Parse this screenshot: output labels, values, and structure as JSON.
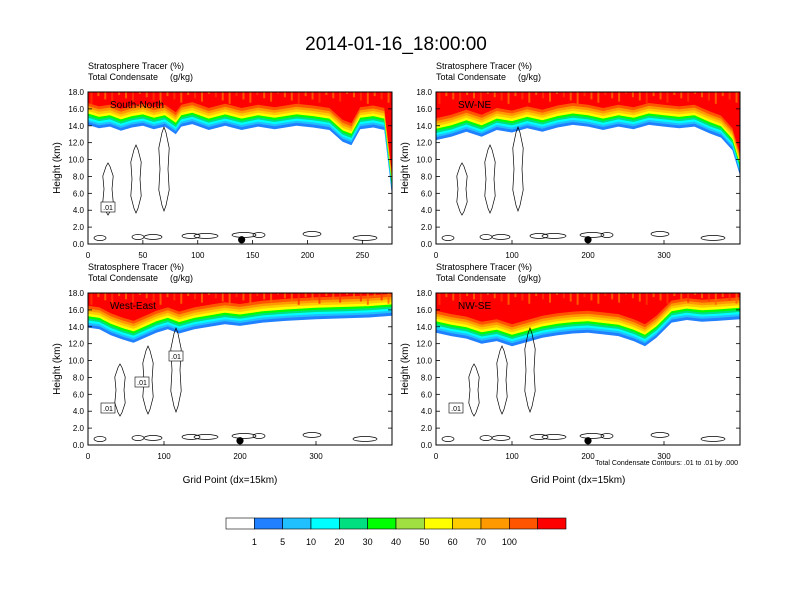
{
  "title": "2014-01-16_18:00:00",
  "panel_header": {
    "line1_name": "Stratosphere Tracer",
    "line1_unit": "(%)",
    "line2_name": "Total Condensate",
    "line2_unit": "(g/kg)"
  },
  "ylabel": "Height (km)",
  "xlabel": "Grid Point (dx=15km)",
  "contour_note": "Total Condensate Contours: .01 to .01 by .000",
  "chart_data": [
    {
      "type": "heatmap",
      "label": "South-North",
      "xlim": [
        0,
        277
      ],
      "xticks": [
        0,
        50,
        100,
        150,
        200,
        250
      ],
      "ylim": [
        0,
        18
      ],
      "yticks": [
        "0.0",
        "2.0",
        "4.0",
        "6.0",
        "8.0",
        "10.0",
        "12.0",
        "14.0",
        "16.0",
        "18.0"
      ],
      "tropopause_km": [
        [
          0,
          15.0
        ],
        [
          10,
          14.6
        ],
        [
          20,
          14.8
        ],
        [
          30,
          14.3
        ],
        [
          40,
          14.7
        ],
        [
          50,
          14.9
        ],
        [
          60,
          14.5
        ],
        [
          70,
          14.8
        ],
        [
          80,
          13.9
        ],
        [
          85,
          14.8
        ],
        [
          95,
          15.1
        ],
        [
          110,
          14.4
        ],
        [
          125,
          14.9
        ],
        [
          140,
          14.4
        ],
        [
          155,
          14.8
        ],
        [
          170,
          14.5
        ],
        [
          190,
          14.9
        ],
        [
          205,
          14.7
        ],
        [
          220,
          14.4
        ],
        [
          232,
          13.0
        ],
        [
          240,
          12.6
        ],
        [
          248,
          14.5
        ],
        [
          260,
          14.7
        ],
        [
          270,
          14.4
        ],
        [
          274,
          10.0
        ],
        [
          277,
          6.6
        ]
      ],
      "contour_labels": [
        ".01"
      ],
      "marker_x": 140
    },
    {
      "type": "heatmap",
      "label": "SW-NE",
      "xlim": [
        0,
        400
      ],
      "xticks": [
        0,
        100,
        200,
        300
      ],
      "ylim": [
        0,
        18
      ],
      "yticks": [
        "0.0",
        "2.0",
        "4.0",
        "6.0",
        "8.0",
        "10.0",
        "12.0",
        "14.0",
        "16.0",
        "18.0"
      ],
      "tropopause_km": [
        [
          0,
          13.2
        ],
        [
          20,
          13.6
        ],
        [
          40,
          14.2
        ],
        [
          60,
          13.6
        ],
        [
          80,
          14.4
        ],
        [
          100,
          14.1
        ],
        [
          120,
          14.6
        ],
        [
          140,
          14.2
        ],
        [
          160,
          14.7
        ],
        [
          180,
          15.0
        ],
        [
          200,
          14.8
        ],
        [
          220,
          14.4
        ],
        [
          240,
          14.8
        ],
        [
          260,
          14.5
        ],
        [
          280,
          15.0
        ],
        [
          300,
          14.8
        ],
        [
          320,
          14.6
        ],
        [
          340,
          14.8
        ],
        [
          360,
          14.0
        ],
        [
          375,
          13.5
        ],
        [
          390,
          12.0
        ],
        [
          400,
          9.0
        ]
      ],
      "contour_labels": [],
      "marker_x": 200
    },
    {
      "type": "heatmap",
      "label": "West-East",
      "xlim": [
        0,
        400
      ],
      "xticks": [
        0,
        100,
        200,
        300
      ],
      "ylim": [
        0,
        18
      ],
      "yticks": [
        "0.0",
        "2.0",
        "4.0",
        "6.0",
        "8.0",
        "10.0",
        "12.0",
        "14.0",
        "16.0",
        "18.0"
      ],
      "tropopause_km": [
        [
          0,
          14.8
        ],
        [
          15,
          14.6
        ],
        [
          30,
          13.9
        ],
        [
          45,
          13.4
        ],
        [
          60,
          13.0
        ],
        [
          75,
          13.6
        ],
        [
          90,
          14.2
        ],
        [
          105,
          14.6
        ],
        [
          120,
          14.1
        ],
        [
          140,
          14.6
        ],
        [
          160,
          14.9
        ],
        [
          180,
          15.2
        ],
        [
          200,
          15.0
        ],
        [
          230,
          15.4
        ],
        [
          260,
          15.6
        ],
        [
          300,
          15.8
        ],
        [
          340,
          15.9
        ],
        [
          370,
          16.0
        ],
        [
          400,
          16.2
        ]
      ],
      "contour_labels": [
        ".01",
        ".01",
        ".01"
      ],
      "marker_x": 200
    },
    {
      "type": "heatmap",
      "label": "NW-SE",
      "xlim": [
        0,
        400
      ],
      "xticks": [
        0,
        100,
        200,
        300
      ],
      "ylim": [
        0,
        18
      ],
      "yticks": [
        "0.0",
        "2.0",
        "4.0",
        "6.0",
        "8.0",
        "10.0",
        "12.0",
        "14.0",
        "16.0",
        "18.0"
      ],
      "tropopause_km": [
        [
          0,
          14.2
        ],
        [
          20,
          13.8
        ],
        [
          40,
          13.5
        ],
        [
          60,
          12.9
        ],
        [
          80,
          13.2
        ],
        [
          100,
          12.6
        ],
        [
          120,
          13.1
        ],
        [
          140,
          13.6
        ],
        [
          160,
          13.9
        ],
        [
          180,
          14.1
        ],
        [
          200,
          14.2
        ],
        [
          220,
          14.0
        ],
        [
          240,
          13.8
        ],
        [
          260,
          13.2
        ],
        [
          275,
          12.6
        ],
        [
          290,
          13.6
        ],
        [
          310,
          15.4
        ],
        [
          330,
          15.7
        ],
        [
          350,
          15.5
        ],
        [
          370,
          15.6
        ],
        [
          400,
          15.8
        ]
      ],
      "contour_labels": [
        ".01"
      ],
      "marker_x": 200
    }
  ],
  "colorbar": {
    "labels": [
      "1",
      "5",
      "10",
      "20",
      "30",
      "40",
      "50",
      "60",
      "70",
      "100"
    ],
    "colors": [
      "#ffffff",
      "#2080ff",
      "#20c0ff",
      "#00ffff",
      "#00e080",
      "#00ff00",
      "#a0e040",
      "#ffff00",
      "#ffcc00",
      "#ff9900",
      "#ff5500",
      "#ff0000"
    ]
  }
}
